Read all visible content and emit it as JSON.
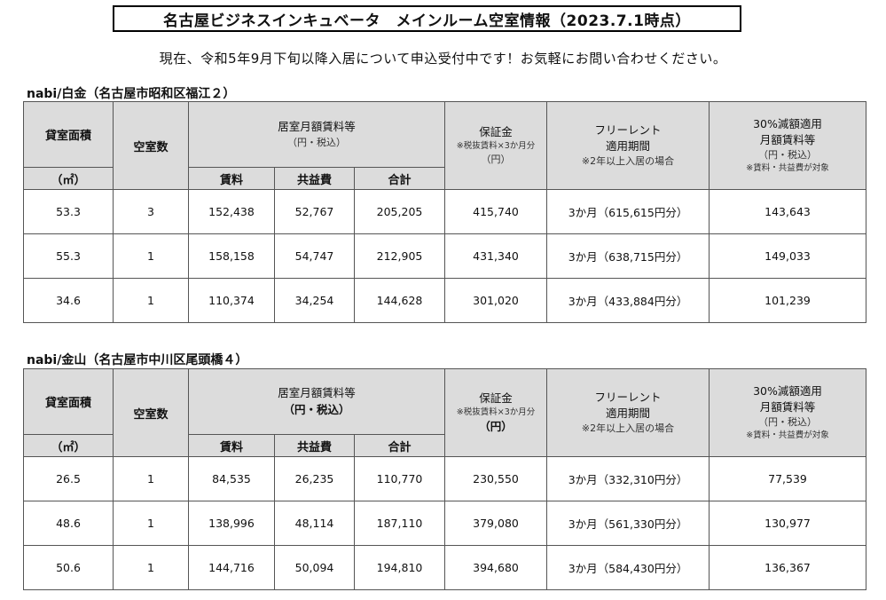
{
  "title": "名古屋ビジネスインキュベータ　メインルーム空室情報（2023.7.1時点）",
  "notice": "現在、令和5年9月下旬以降入居について申込受付中です！お気軽にお問い合わせください。",
  "headers": {
    "area": "貸室面積",
    "area_unit": "（㎡）",
    "vacancy_count": "空室数",
    "rent_group": "居室月額賃料等",
    "rent_group_unit": "（円・税込）",
    "rent": "賃料",
    "common_fee": "共益費",
    "total": "合計",
    "deposit": "保証金",
    "deposit_note": "※税抜賃料×3か月分",
    "deposit_unit": "（円）",
    "free_rent": "フリーレント",
    "free_rent_period": "適用期間",
    "free_rent_note": "※2年以上入居の場合",
    "discount": "30%減額適用",
    "discount_monthly": "月額賃料等",
    "discount_unit": "（円・税込）",
    "discount_note": "※賃料・共益費が対象"
  },
  "sections": [
    {
      "title": "nabi/白金（名古屋市昭和区福江２）",
      "rows": [
        {
          "area": "53.3",
          "count": "3",
          "rent": "152,438",
          "common": "52,767",
          "total": "205,205",
          "deposit": "415,740",
          "free_rent": "3か月（615,615円分）",
          "discount": "143,643"
        },
        {
          "area": "55.3",
          "count": "1",
          "rent": "158,158",
          "common": "54,747",
          "total": "212,905",
          "deposit": "431,340",
          "free_rent": "3か月（638,715円分）",
          "discount": "149,033"
        },
        {
          "area": "34.6",
          "count": "1",
          "rent": "110,374",
          "common": "34,254",
          "total": "144,628",
          "deposit": "301,020",
          "free_rent": "3か月（433,884円分）",
          "discount": "101,239"
        }
      ]
    },
    {
      "title": "nabi/金山（名古屋市中川区尾頭橋４）",
      "rows": [
        {
          "area": "26.5",
          "count": "1",
          "rent": "84,535",
          "common": "26,235",
          "total": "110,770",
          "deposit": "230,550",
          "free_rent": "3か月（332,310円分）",
          "discount": "77,539"
        },
        {
          "area": "48.6",
          "count": "1",
          "rent": "138,996",
          "common": "48,114",
          "total": "187,110",
          "deposit": "379,080",
          "free_rent": "3か月（561,330円分）",
          "discount": "130,977"
        },
        {
          "area": "50.6",
          "count": "1",
          "rent": "144,716",
          "common": "50,094",
          "total": "194,810",
          "deposit": "394,680",
          "free_rent": "3か月（584,430円分）",
          "discount": "136,367"
        }
      ]
    }
  ]
}
